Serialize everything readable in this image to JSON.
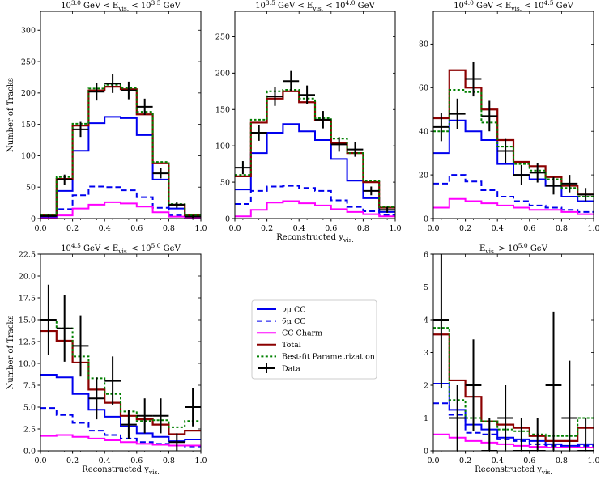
{
  "figure": {
    "legend": {
      "entries": [
        {
          "key": "numu",
          "label": "νμ CC",
          "color": "#0000ee",
          "style": "solid"
        },
        {
          "key": "numubar",
          "label": "ν̄μ CC",
          "color": "#0000ee",
          "style": "dashed"
        },
        {
          "key": "charm",
          "label": "CC Charm",
          "color": "#ff00ff",
          "style": "solid"
        },
        {
          "key": "total",
          "label": "Total",
          "color": "#8b0000",
          "style": "solid"
        },
        {
          "key": "bestfit",
          "label": "Best-fit Parametrization",
          "color": "#008000",
          "style": "dotted"
        },
        {
          "key": "data",
          "label": "Data",
          "color": "#000000",
          "style": "cross"
        }
      ]
    }
  },
  "chart_data": [
    {
      "type": "step",
      "title": "10^3.0 GeV < E_vis. < 10^3.5 GeV",
      "xlabel": "",
      "ylabel": "Number of Tracks",
      "xlim": [
        0,
        1
      ],
      "ylim": [
        0,
        330
      ],
      "xticks": [
        "0.0",
        "0.2",
        "0.4",
        "0.6",
        "0.8",
        "1.0"
      ],
      "yticks": [
        0,
        50,
        100,
        150,
        200,
        250,
        300
      ],
      "bin_edges": [
        0,
        0.1,
        0.2,
        0.3,
        0.4,
        0.5,
        0.6,
        0.7,
        0.8,
        0.9,
        1.0
      ],
      "series": [
        {
          "key": "numu",
          "values": [
            3,
            44,
            108,
            152,
            162,
            160,
            133,
            62,
            16,
            4
          ]
        },
        {
          "key": "numubar",
          "values": [
            1,
            15,
            37,
            51,
            50,
            45,
            34,
            17,
            5,
            1
          ]
        },
        {
          "key": "charm",
          "values": [
            1,
            5,
            16,
            22,
            26,
            24,
            19,
            10,
            3,
            1
          ]
        },
        {
          "key": "total",
          "values": [
            5,
            63,
            148,
            204,
            210,
            206,
            166,
            88,
            22,
            5
          ]
        },
        {
          "key": "bestfit",
          "values": [
            5,
            66,
            151,
            207,
            213,
            208,
            170,
            90,
            23,
            5
          ]
        }
      ],
      "data_points": [
        {
          "x": 0.05,
          "y": 4,
          "err": 2
        },
        {
          "x": 0.15,
          "y": 62,
          "err": 8
        },
        {
          "x": 0.25,
          "y": 142,
          "err": 12
        },
        {
          "x": 0.35,
          "y": 202,
          "err": 14
        },
        {
          "x": 0.45,
          "y": 215,
          "err": 15
        },
        {
          "x": 0.55,
          "y": 204,
          "err": 14
        },
        {
          "x": 0.65,
          "y": 178,
          "err": 13
        },
        {
          "x": 0.75,
          "y": 72,
          "err": 8
        },
        {
          "x": 0.85,
          "y": 22,
          "err": 5
        },
        {
          "x": 0.95,
          "y": 3,
          "err": 2
        }
      ]
    },
    {
      "type": "step",
      "title": "10^3.5 GeV < E_vis. < 10^4.0 GeV",
      "xlabel": "Reconstructed y_vis.",
      "ylabel": "",
      "xlim": [
        0,
        1
      ],
      "ylim": [
        0,
        285
      ],
      "xticks": [
        "0.0",
        "0.2",
        "0.4",
        "0.6",
        "0.8",
        "1.0"
      ],
      "yticks": [
        0,
        50,
        100,
        150,
        200,
        250
      ],
      "bin_edges": [
        0,
        0.1,
        0.2,
        0.3,
        0.4,
        0.5,
        0.6,
        0.7,
        0.8,
        0.9,
        1.0
      ],
      "series": [
        {
          "key": "numu",
          "values": [
            40,
            90,
            118,
            130,
            120,
            108,
            82,
            52,
            28,
            9
          ]
        },
        {
          "key": "numubar",
          "values": [
            20,
            38,
            44,
            45,
            42,
            38,
            25,
            16,
            10,
            5
          ]
        },
        {
          "key": "charm",
          "values": [
            3,
            12,
            22,
            24,
            21,
            18,
            13,
            9,
            6,
            3
          ]
        },
        {
          "key": "total",
          "values": [
            58,
            132,
            165,
            175,
            160,
            135,
            104,
            90,
            50,
            15
          ]
        },
        {
          "key": "bestfit",
          "values": [
            60,
            136,
            175,
            177,
            165,
            138,
            110,
            90,
            52,
            16
          ]
        }
      ],
      "data_points": [
        {
          "x": 0.05,
          "y": 70,
          "err": 9
        },
        {
          "x": 0.15,
          "y": 118,
          "err": 11
        },
        {
          "x": 0.25,
          "y": 168,
          "err": 13
        },
        {
          "x": 0.35,
          "y": 189,
          "err": 14
        },
        {
          "x": 0.45,
          "y": 170,
          "err": 13
        },
        {
          "x": 0.55,
          "y": 136,
          "err": 12
        },
        {
          "x": 0.65,
          "y": 102,
          "err": 10
        },
        {
          "x": 0.75,
          "y": 95,
          "err": 10
        },
        {
          "x": 0.85,
          "y": 38,
          "err": 6
        },
        {
          "x": 0.95,
          "y": 12,
          "err": 4
        }
      ]
    },
    {
      "type": "step",
      "title": "10^4.0 GeV < E_vis. < 10^4.5 GeV",
      "xlabel": "",
      "ylabel": "",
      "xlim": [
        0,
        1
      ],
      "ylim": [
        0,
        95
      ],
      "xticks": [
        "0.0",
        "0.2",
        "0.4",
        "0.6",
        "0.8",
        "1.0"
      ],
      "yticks": [
        0,
        20,
        40,
        60,
        80
      ],
      "bin_edges": [
        0,
        0.1,
        0.2,
        0.3,
        0.4,
        0.5,
        0.6,
        0.7,
        0.8,
        0.9,
        1.0
      ],
      "series": [
        {
          "key": "numu",
          "values": [
            30,
            45,
            40,
            36,
            25,
            20,
            18,
            15,
            10,
            8
          ]
        },
        {
          "key": "numubar",
          "values": [
            16,
            20,
            17,
            13,
            10,
            8,
            6,
            5,
            4,
            3
          ]
        },
        {
          "key": "charm",
          "values": [
            5,
            9,
            8,
            7,
            6,
            5,
            4,
            4,
            3,
            2
          ]
        },
        {
          "key": "total",
          "values": [
            46,
            68,
            60,
            50,
            36,
            26,
            24,
            19,
            15,
            11
          ]
        },
        {
          "key": "bestfit",
          "values": [
            40,
            59,
            58,
            44,
            33,
            25,
            22,
            18,
            14,
            10
          ]
        }
      ],
      "data_points": [
        {
          "x": 0.05,
          "y": 42,
          "err": 6.5
        },
        {
          "x": 0.15,
          "y": 48,
          "err": 7
        },
        {
          "x": 0.25,
          "y": 64,
          "err": 8
        },
        {
          "x": 0.35,
          "y": 47,
          "err": 7
        },
        {
          "x": 0.45,
          "y": 31,
          "err": 5.5
        },
        {
          "x": 0.55,
          "y": 20,
          "err": 4.5
        },
        {
          "x": 0.65,
          "y": 21,
          "err": 4.5
        },
        {
          "x": 0.75,
          "y": 15,
          "err": 4
        },
        {
          "x": 0.85,
          "y": 16,
          "err": 4
        },
        {
          "x": 0.95,
          "y": 11,
          "err": 3
        }
      ]
    },
    {
      "type": "step",
      "title": "10^4.5 GeV < E_vis. < 10^5.0 GeV",
      "xlabel": "Reconstructed y_vis.",
      "ylabel": "Number of Tracks",
      "xlim": [
        0,
        1
      ],
      "ylim": [
        0,
        22.5
      ],
      "xticks": [
        "0.0",
        "0.2",
        "0.4",
        "0.6",
        "0.8",
        "1.0"
      ],
      "yticks": [
        "0.0",
        "2.5",
        "5.0",
        "7.5",
        "10.0",
        "12.5",
        "15.0",
        "17.5",
        "20.0",
        "22.5"
      ],
      "bin_edges": [
        0,
        0.1,
        0.2,
        0.3,
        0.4,
        0.5,
        0.6,
        0.7,
        0.8,
        0.9,
        1.0
      ],
      "series": [
        {
          "key": "numu",
          "values": [
            8.7,
            8.4,
            6.5,
            4.7,
            3.9,
            2.8,
            2.0,
            1.6,
            1.1,
            1.3
          ]
        },
        {
          "key": "numubar",
          "values": [
            4.9,
            4.1,
            3.2,
            2.3,
            1.8,
            1.4,
            1.0,
            0.8,
            0.6,
            0.5
          ]
        },
        {
          "key": "charm",
          "values": [
            1.7,
            1.8,
            1.6,
            1.4,
            1.2,
            1.0,
            0.8,
            0.7,
            0.6,
            0.6
          ]
        },
        {
          "key": "total",
          "values": [
            13.7,
            12.6,
            10.1,
            7.0,
            5.5,
            4.0,
            3.6,
            3.0,
            1.9,
            2.3
          ]
        },
        {
          "key": "bestfit",
          "values": [
            15.0,
            14.0,
            10.8,
            8.3,
            6.5,
            4.5,
            3.4,
            3.5,
            2.7,
            3.4
          ]
        }
      ],
      "data_points": [
        {
          "x": 0.05,
          "y": 15,
          "err": 4
        },
        {
          "x": 0.15,
          "y": 14,
          "err": 3.8
        },
        {
          "x": 0.25,
          "y": 12,
          "err": 3.5
        },
        {
          "x": 0.35,
          "y": 6,
          "err": 2.4
        },
        {
          "x": 0.45,
          "y": 8,
          "err": 2.8
        },
        {
          "x": 0.55,
          "y": 3,
          "err": 1.7
        },
        {
          "x": 0.65,
          "y": 4,
          "err": 2
        },
        {
          "x": 0.75,
          "y": 4,
          "err": 2
        },
        {
          "x": 0.85,
          "y": 1,
          "err": 1
        },
        {
          "x": 0.95,
          "y": 5,
          "err": 2.2
        }
      ]
    },
    {
      "type": "step",
      "title": "E_vis. > 10^5.0 GeV",
      "xlabel": "Reconstructed y_vis.",
      "ylabel": "",
      "xlim": [
        0,
        1
      ],
      "ylim": [
        0,
        6
      ],
      "xticks": [
        "0.0",
        "0.2",
        "0.4",
        "0.6",
        "0.8",
        "1.0"
      ],
      "yticks": [
        0,
        1,
        2,
        3,
        4,
        5,
        6
      ],
      "bin_edges": [
        0,
        0.1,
        0.2,
        0.3,
        0.4,
        0.5,
        0.6,
        0.7,
        0.8,
        0.9,
        1.0
      ],
      "series": [
        {
          "key": "numu",
          "values": [
            2.05,
            1.25,
            0.8,
            0.65,
            0.4,
            0.35,
            0.3,
            0.2,
            0.15,
            0.2
          ]
        },
        {
          "key": "numubar",
          "values": [
            1.45,
            1.1,
            0.55,
            0.5,
            0.35,
            0.3,
            0.2,
            0.15,
            0.1,
            0.15
          ]
        },
        {
          "key": "charm",
          "values": [
            0.5,
            0.4,
            0.3,
            0.25,
            0.2,
            0.15,
            0.12,
            0.1,
            0.1,
            0.1
          ]
        },
        {
          "key": "total",
          "values": [
            3.55,
            2.15,
            1.65,
            0.9,
            0.8,
            0.7,
            0.45,
            0.3,
            0.3,
            0.7
          ]
        },
        {
          "key": "bestfit",
          "values": [
            3.75,
            1.55,
            1.0,
            0.9,
            0.65,
            0.6,
            0.5,
            0.45,
            0.45,
            1.0
          ]
        }
      ],
      "data_points": [
        {
          "x": 0.05,
          "y": 4,
          "err": 2.1
        },
        {
          "x": 0.15,
          "y": 1,
          "err": 1
        },
        {
          "x": 0.25,
          "y": 2,
          "err": 1.4
        },
        {
          "x": 0.35,
          "y": 0,
          "err": 1
        },
        {
          "x": 0.45,
          "y": 1,
          "err": 1
        },
        {
          "x": 0.55,
          "y": 0,
          "err": 1
        },
        {
          "x": 0.65,
          "y": 0,
          "err": 1
        },
        {
          "x": 0.75,
          "y": 2,
          "err": 2.25
        },
        {
          "x": 0.85,
          "y": 1,
          "err": 1.75
        },
        {
          "x": 0.95,
          "y": 0,
          "err": 1
        }
      ]
    }
  ]
}
